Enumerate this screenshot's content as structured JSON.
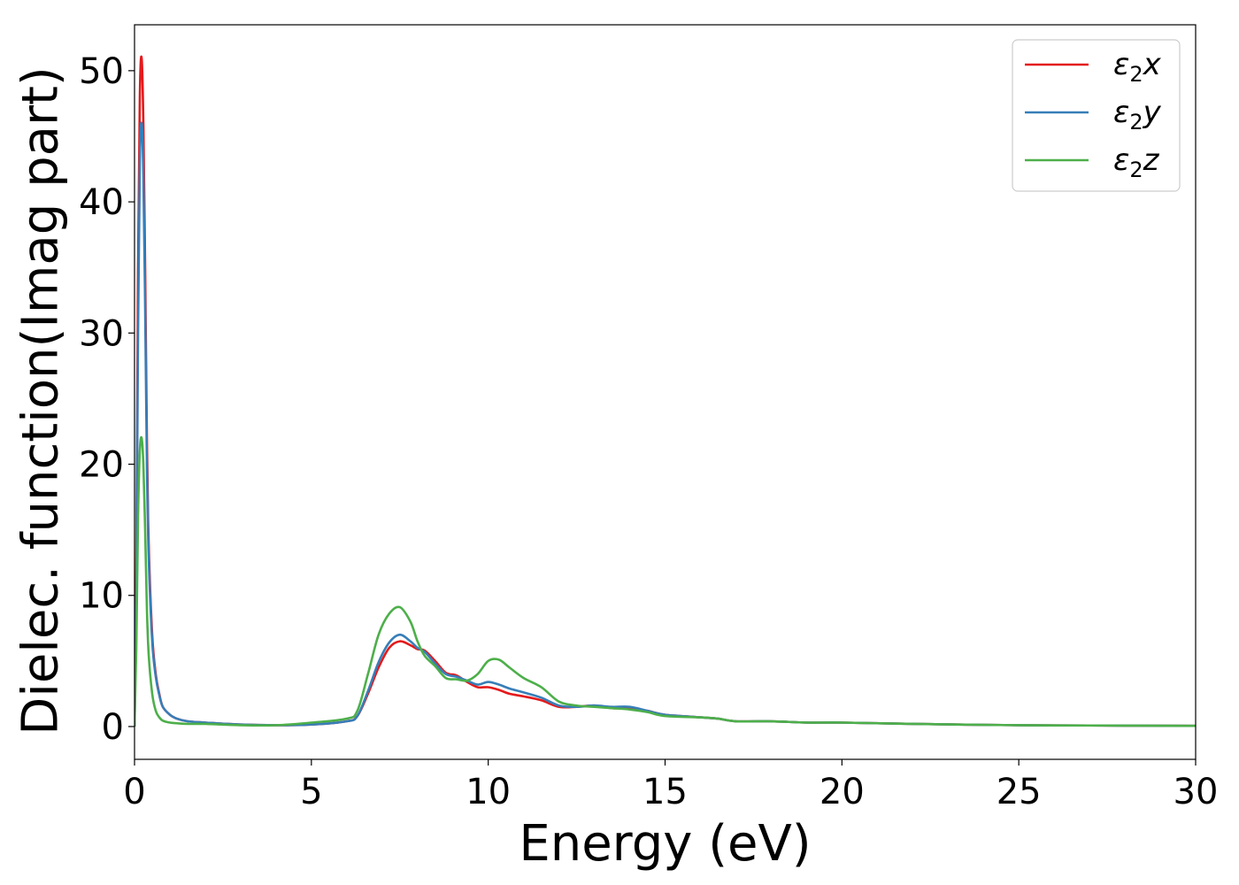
{
  "chart_data": {
    "type": "line",
    "title": "",
    "xlabel": "Energy (eV)",
    "ylabel": "Dielec. function(Imag part)",
    "xlim": [
      0,
      30
    ],
    "ylim": [
      -2.5,
      53.5
    ],
    "xticks": [
      0,
      5,
      10,
      15,
      20,
      25,
      30
    ],
    "xtick_labels": [
      "0",
      "5",
      "10",
      "15",
      "20",
      "25",
      "30"
    ],
    "yticks": [
      0,
      10,
      20,
      30,
      40,
      50
    ],
    "ytick_labels": [
      "0",
      "10",
      "20",
      "30",
      "40",
      "50"
    ],
    "grid": false,
    "legend_position": "top-right",
    "series": [
      {
        "name": "ε₂x",
        "legend_base": "ε",
        "legend_sub": "2",
        "legend_suffix": "x",
        "color": "#e41a1c",
        "x": [
          0,
          0.05,
          0.1,
          0.15,
          0.2,
          0.25,
          0.3,
          0.35,
          0.4,
          0.5,
          0.6,
          0.7,
          0.8,
          1.0,
          1.2,
          1.5,
          2,
          3,
          4,
          5,
          6,
          6.3,
          6.6,
          6.9,
          7.2,
          7.5,
          7.8,
          8.0,
          8.2,
          8.5,
          8.8,
          9.1,
          9.4,
          9.7,
          10.0,
          10.3,
          10.6,
          11.0,
          11.5,
          12.0,
          12.5,
          13.0,
          13.5,
          14.0,
          14.5,
          15,
          16,
          16.5,
          17,
          18,
          19,
          20,
          22,
          25,
          27,
          30
        ],
        "y": [
          0,
          12,
          35,
          48,
          51,
          46,
          35,
          22,
          14,
          7,
          4,
          2.5,
          1.5,
          0.9,
          0.6,
          0.4,
          0.3,
          0.15,
          0.1,
          0.15,
          0.4,
          0.8,
          2.5,
          4.5,
          6,
          6.5,
          6.2,
          5.9,
          5.8,
          5.0,
          4.1,
          3.9,
          3.4,
          3.0,
          3.0,
          2.8,
          2.5,
          2.3,
          2.0,
          1.5,
          1.5,
          1.6,
          1.4,
          1.4,
          1.2,
          0.9,
          0.7,
          0.6,
          0.4,
          0.4,
          0.3,
          0.3,
          0.2,
          0.1,
          0.08,
          0.05
        ]
      },
      {
        "name": "ε₂y",
        "legend_base": "ε",
        "legend_sub": "2",
        "legend_suffix": "y",
        "color": "#377eb8",
        "x": [
          0,
          0.05,
          0.1,
          0.15,
          0.2,
          0.25,
          0.3,
          0.35,
          0.4,
          0.5,
          0.6,
          0.7,
          0.8,
          1.0,
          1.2,
          1.5,
          2,
          3,
          4,
          5,
          6,
          6.3,
          6.6,
          6.9,
          7.2,
          7.5,
          7.8,
          8.0,
          8.2,
          8.5,
          8.8,
          9.1,
          9.4,
          9.7,
          10.0,
          10.3,
          10.6,
          11.0,
          11.5,
          12.0,
          12.5,
          13.0,
          13.5,
          14.0,
          14.5,
          15,
          16,
          16.5,
          17,
          18,
          19,
          20,
          22,
          25,
          27,
          30
        ],
        "y": [
          0,
          10,
          30,
          43,
          46,
          42,
          32,
          20,
          13,
          6.5,
          3.8,
          2.4,
          1.5,
          0.9,
          0.6,
          0.4,
          0.3,
          0.15,
          0.1,
          0.15,
          0.4,
          0.8,
          2.7,
          4.9,
          6.4,
          7.0,
          6.5,
          6.0,
          5.7,
          4.8,
          4.0,
          3.8,
          3.5,
          3.2,
          3.4,
          3.2,
          2.9,
          2.6,
          2.2,
          1.6,
          1.5,
          1.6,
          1.5,
          1.5,
          1.2,
          0.9,
          0.7,
          0.6,
          0.4,
          0.4,
          0.3,
          0.3,
          0.2,
          0.1,
          0.08,
          0.05
        ]
      },
      {
        "name": "ε₂z",
        "legend_base": "ε",
        "legend_sub": "2",
        "legend_suffix": "z",
        "color": "#4daf4a",
        "x": [
          0,
          0.05,
          0.1,
          0.15,
          0.2,
          0.25,
          0.3,
          0.35,
          0.4,
          0.5,
          0.6,
          0.7,
          0.8,
          1.0,
          1.2,
          1.5,
          2,
          3,
          4,
          5,
          6,
          6.3,
          6.6,
          6.9,
          7.2,
          7.5,
          7.8,
          8.0,
          8.2,
          8.5,
          8.8,
          9.1,
          9.4,
          9.7,
          10.0,
          10.3,
          10.6,
          11.0,
          11.5,
          12.0,
          12.5,
          13.0,
          13.5,
          14.0,
          14.5,
          15,
          16,
          16.5,
          17,
          18,
          19,
          20,
          22,
          25,
          27,
          30
        ],
        "y": [
          0,
          6,
          16,
          21,
          22,
          20,
          15,
          9,
          5.5,
          2.5,
          1.2,
          0.7,
          0.45,
          0.3,
          0.25,
          0.2,
          0.2,
          0.1,
          0.1,
          0.3,
          0.6,
          1.2,
          4.0,
          7.0,
          8.6,
          9.1,
          8.0,
          6.5,
          5.4,
          4.6,
          3.7,
          3.6,
          3.5,
          4.0,
          5.0,
          5.1,
          4.5,
          3.7,
          3.0,
          1.9,
          1.6,
          1.5,
          1.4,
          1.3,
          1.1,
          0.8,
          0.7,
          0.6,
          0.4,
          0.4,
          0.3,
          0.3,
          0.2,
          0.1,
          0.08,
          0.05
        ]
      }
    ]
  }
}
